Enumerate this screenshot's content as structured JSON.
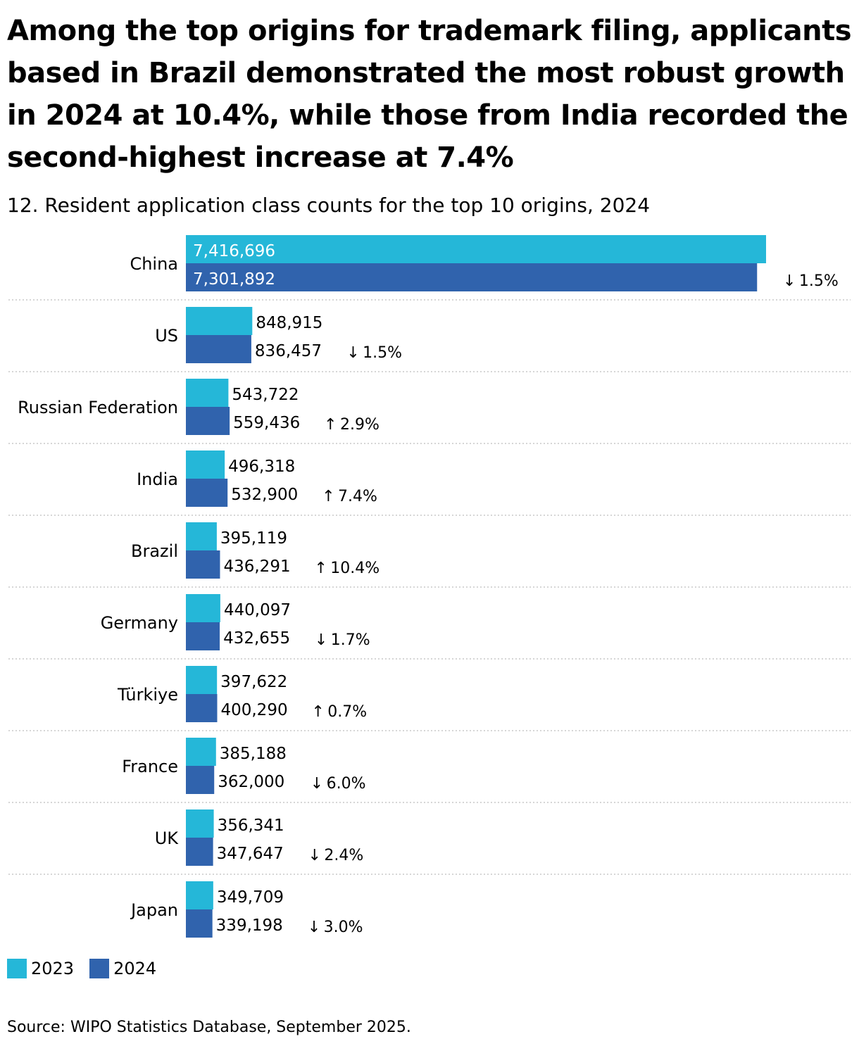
{
  "title": "Among the top origins for trademark filing, applicants based in Brazil demonstrated the most robust growth in 2024 at 10.4%, while those from India recorded the second-highest increase at 7.4%",
  "subtitle": "12. Resident application class counts for the top 10 origins, 2024",
  "source": "Source: WIPO Statistics Database, September 2025.",
  "colors": {
    "series_2023": "#25b7d8",
    "series_2024": "#3063ad",
    "grid": "#c8c8c8"
  },
  "chart_data": {
    "type": "bar",
    "orientation": "horizontal",
    "categories": [
      "China",
      "US",
      "Russian Federation",
      "India",
      "Brazil",
      "Germany",
      "Türkiye",
      "France",
      "UK",
      "Japan"
    ],
    "series": [
      {
        "name": "2023",
        "values": [
          7416696,
          848915,
          543722,
          496318,
          395119,
          440097,
          397622,
          385188,
          356341,
          349709
        ],
        "labels": [
          "7,416,696",
          "848,915",
          "543,722",
          "496,318",
          "395,119",
          "440,097",
          "397,622",
          "385,188",
          "356,341",
          "349,709"
        ]
      },
      {
        "name": "2024",
        "values": [
          7301892,
          836457,
          559436,
          532900,
          436291,
          432655,
          400290,
          362000,
          347647,
          339198
        ],
        "labels": [
          "7,301,892",
          "836,457",
          "559,436",
          "532,900",
          "436,291",
          "432,655",
          "400,290",
          "362,000",
          "347,647",
          "339,198"
        ]
      }
    ],
    "changes": [
      {
        "arrow": "↓",
        "value": "1.5%"
      },
      {
        "arrow": "↓",
        "value": "1.5%"
      },
      {
        "arrow": "↑",
        "value": "2.9%"
      },
      {
        "arrow": "↑",
        "value": "7.4%"
      },
      {
        "arrow": "↑",
        "value": "10.4%"
      },
      {
        "arrow": "↓",
        "value": "1.7%"
      },
      {
        "arrow": "↑",
        "value": "0.7%"
      },
      {
        "arrow": "↓",
        "value": "6.0%"
      },
      {
        "arrow": "↓",
        "value": "2.4%"
      },
      {
        "arrow": "↓",
        "value": "3.0%"
      }
    ],
    "legend_position": "bottom-left",
    "grid": false
  }
}
